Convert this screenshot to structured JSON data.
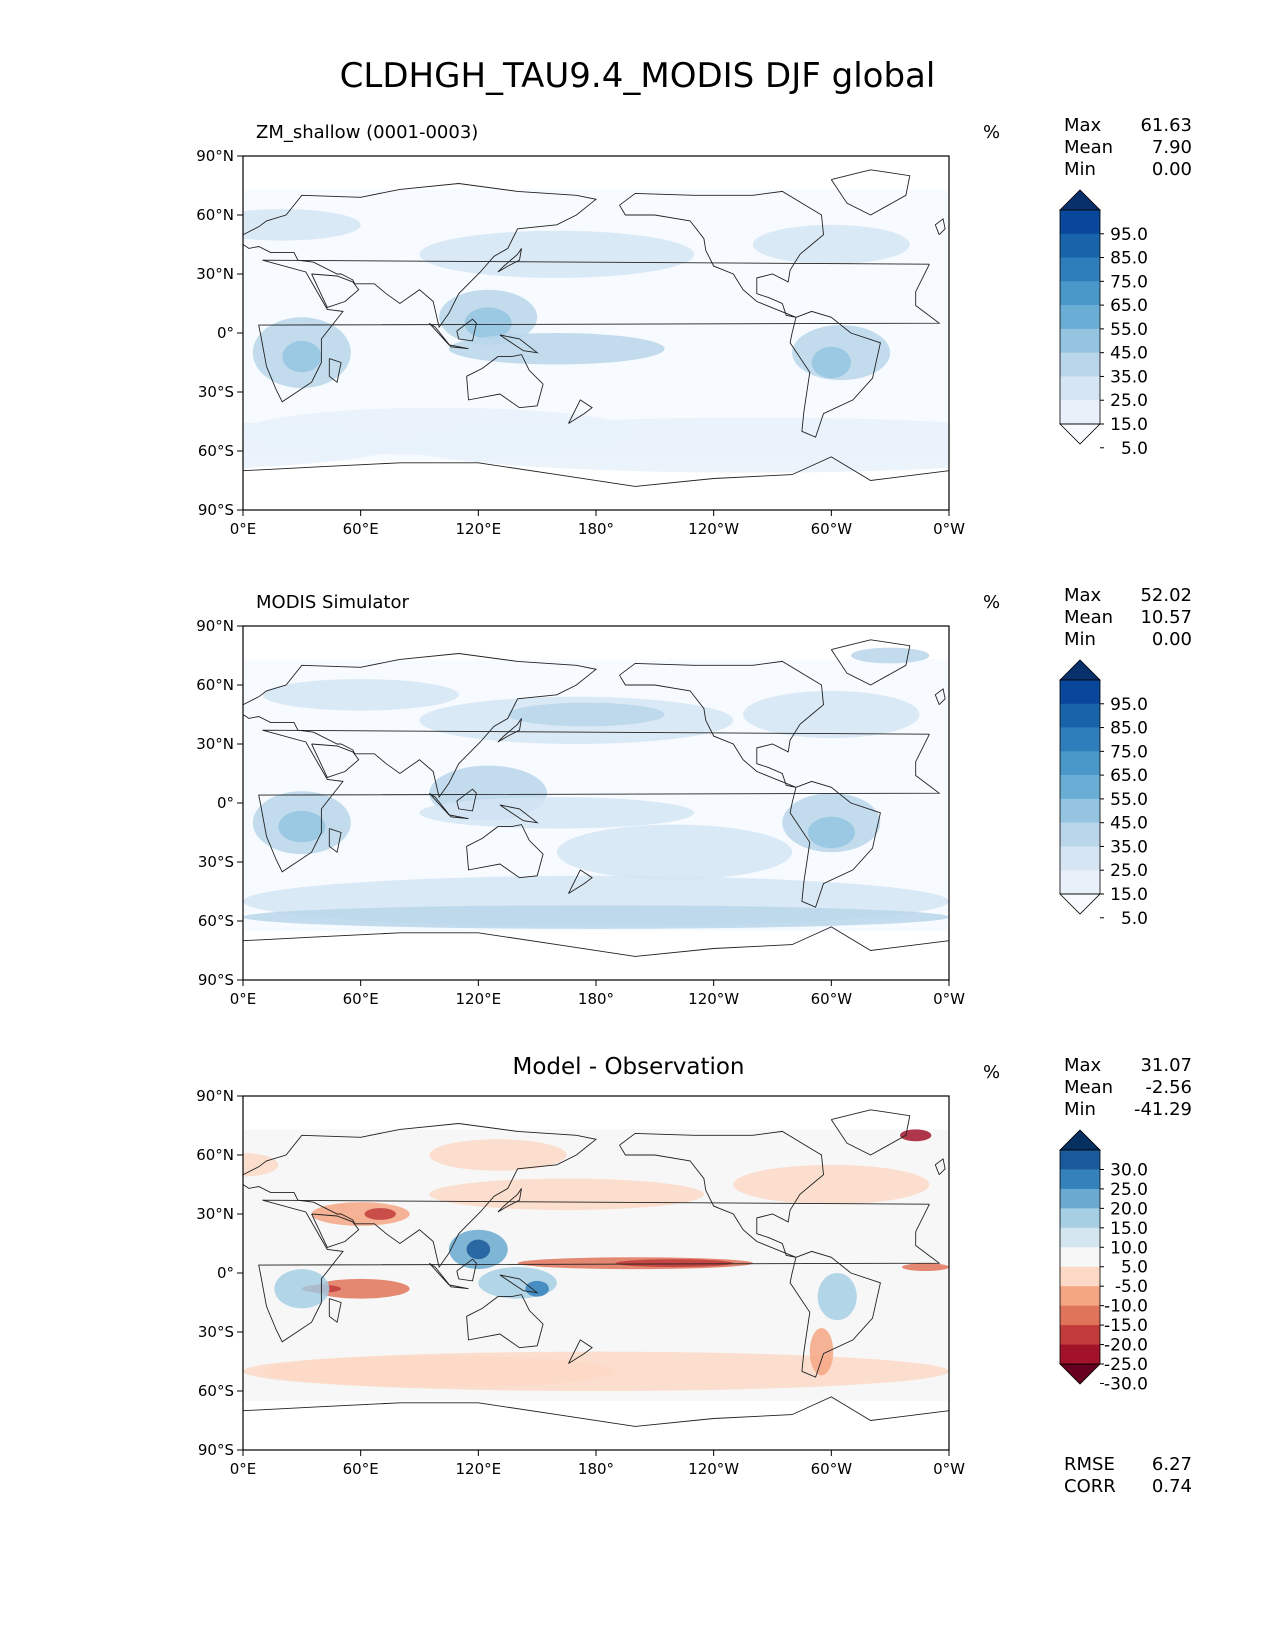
{
  "title": "CLDHGH_TAU9.4_MODIS DJF global",
  "x_ticks": [
    "0°E",
    "60°E",
    "120°E",
    "180°",
    "120°W",
    "60°W",
    "0°W"
  ],
  "y_ticks": [
    "90°N",
    "60°N",
    "30°N",
    "0°",
    "30°S",
    "60°S",
    "90°S"
  ],
  "panels": [
    {
      "title": "ZM_shallow (0001-0003)",
      "units": "%",
      "stats": {
        "max_label": "Max",
        "max": "61.63",
        "mean_label": "Mean",
        "mean": "7.90",
        "min_label": "Min",
        "min": "0.00"
      },
      "colorbar": {
        "labels": [
          "95.0",
          "85.0",
          "75.0",
          "65.0",
          "55.0",
          "45.0",
          "35.0",
          "25.0",
          "15.0",
          "5.0"
        ],
        "colors": [
          "#08306b",
          "#08479a",
          "#1764ab",
          "#2e7ebc",
          "#4a98c9",
          "#6aaed6",
          "#94c4df",
          "#b9d6ea",
          "#d5e5f4",
          "#e8f1fa",
          "#f7fbff"
        ]
      }
    },
    {
      "title": "MODIS Simulator",
      "units": "%",
      "stats": {
        "max_label": "Max",
        "max": "52.02",
        "mean_label": "Mean",
        "mean": "10.57",
        "min_label": "Min",
        "min": "0.00"
      },
      "colorbar": {
        "labels": [
          "95.0",
          "85.0",
          "75.0",
          "65.0",
          "55.0",
          "45.0",
          "35.0",
          "25.0",
          "15.0",
          "5.0"
        ],
        "colors": [
          "#08306b",
          "#08479a",
          "#1764ab",
          "#2e7ebc",
          "#4a98c9",
          "#6aaed6",
          "#94c4df",
          "#b9d6ea",
          "#d5e5f4",
          "#e8f1fa",
          "#f7fbff"
        ]
      }
    },
    {
      "title": "Model - Observation",
      "units": "%",
      "stats": {
        "max_label": "Max",
        "max": "31.07",
        "mean_label": "Mean",
        "mean": "-2.56",
        "min_label": "Min",
        "min": "-41.29"
      },
      "colorbar": {
        "labels": [
          "30.0",
          "25.0",
          "20.0",
          "15.0",
          "10.0",
          "5.0",
          "-5.0",
          "-10.0",
          "-15.0",
          "-20.0",
          "-25.0",
          "-30.0"
        ],
        "colors": [
          "#053061",
          "#1b5a9a",
          "#3581bc",
          "#6aaad0",
          "#a6cfe4",
          "#d3e6f0",
          "#f7f7f7",
          "#fbd9c6",
          "#f4a683",
          "#e0745b",
          "#c13b3b",
          "#a2132b",
          "#67001f"
        ]
      },
      "metrics": {
        "rmse_label": "RMSE",
        "rmse": "6.27",
        "corr_label": "CORR",
        "corr": "0.74"
      }
    }
  ]
}
